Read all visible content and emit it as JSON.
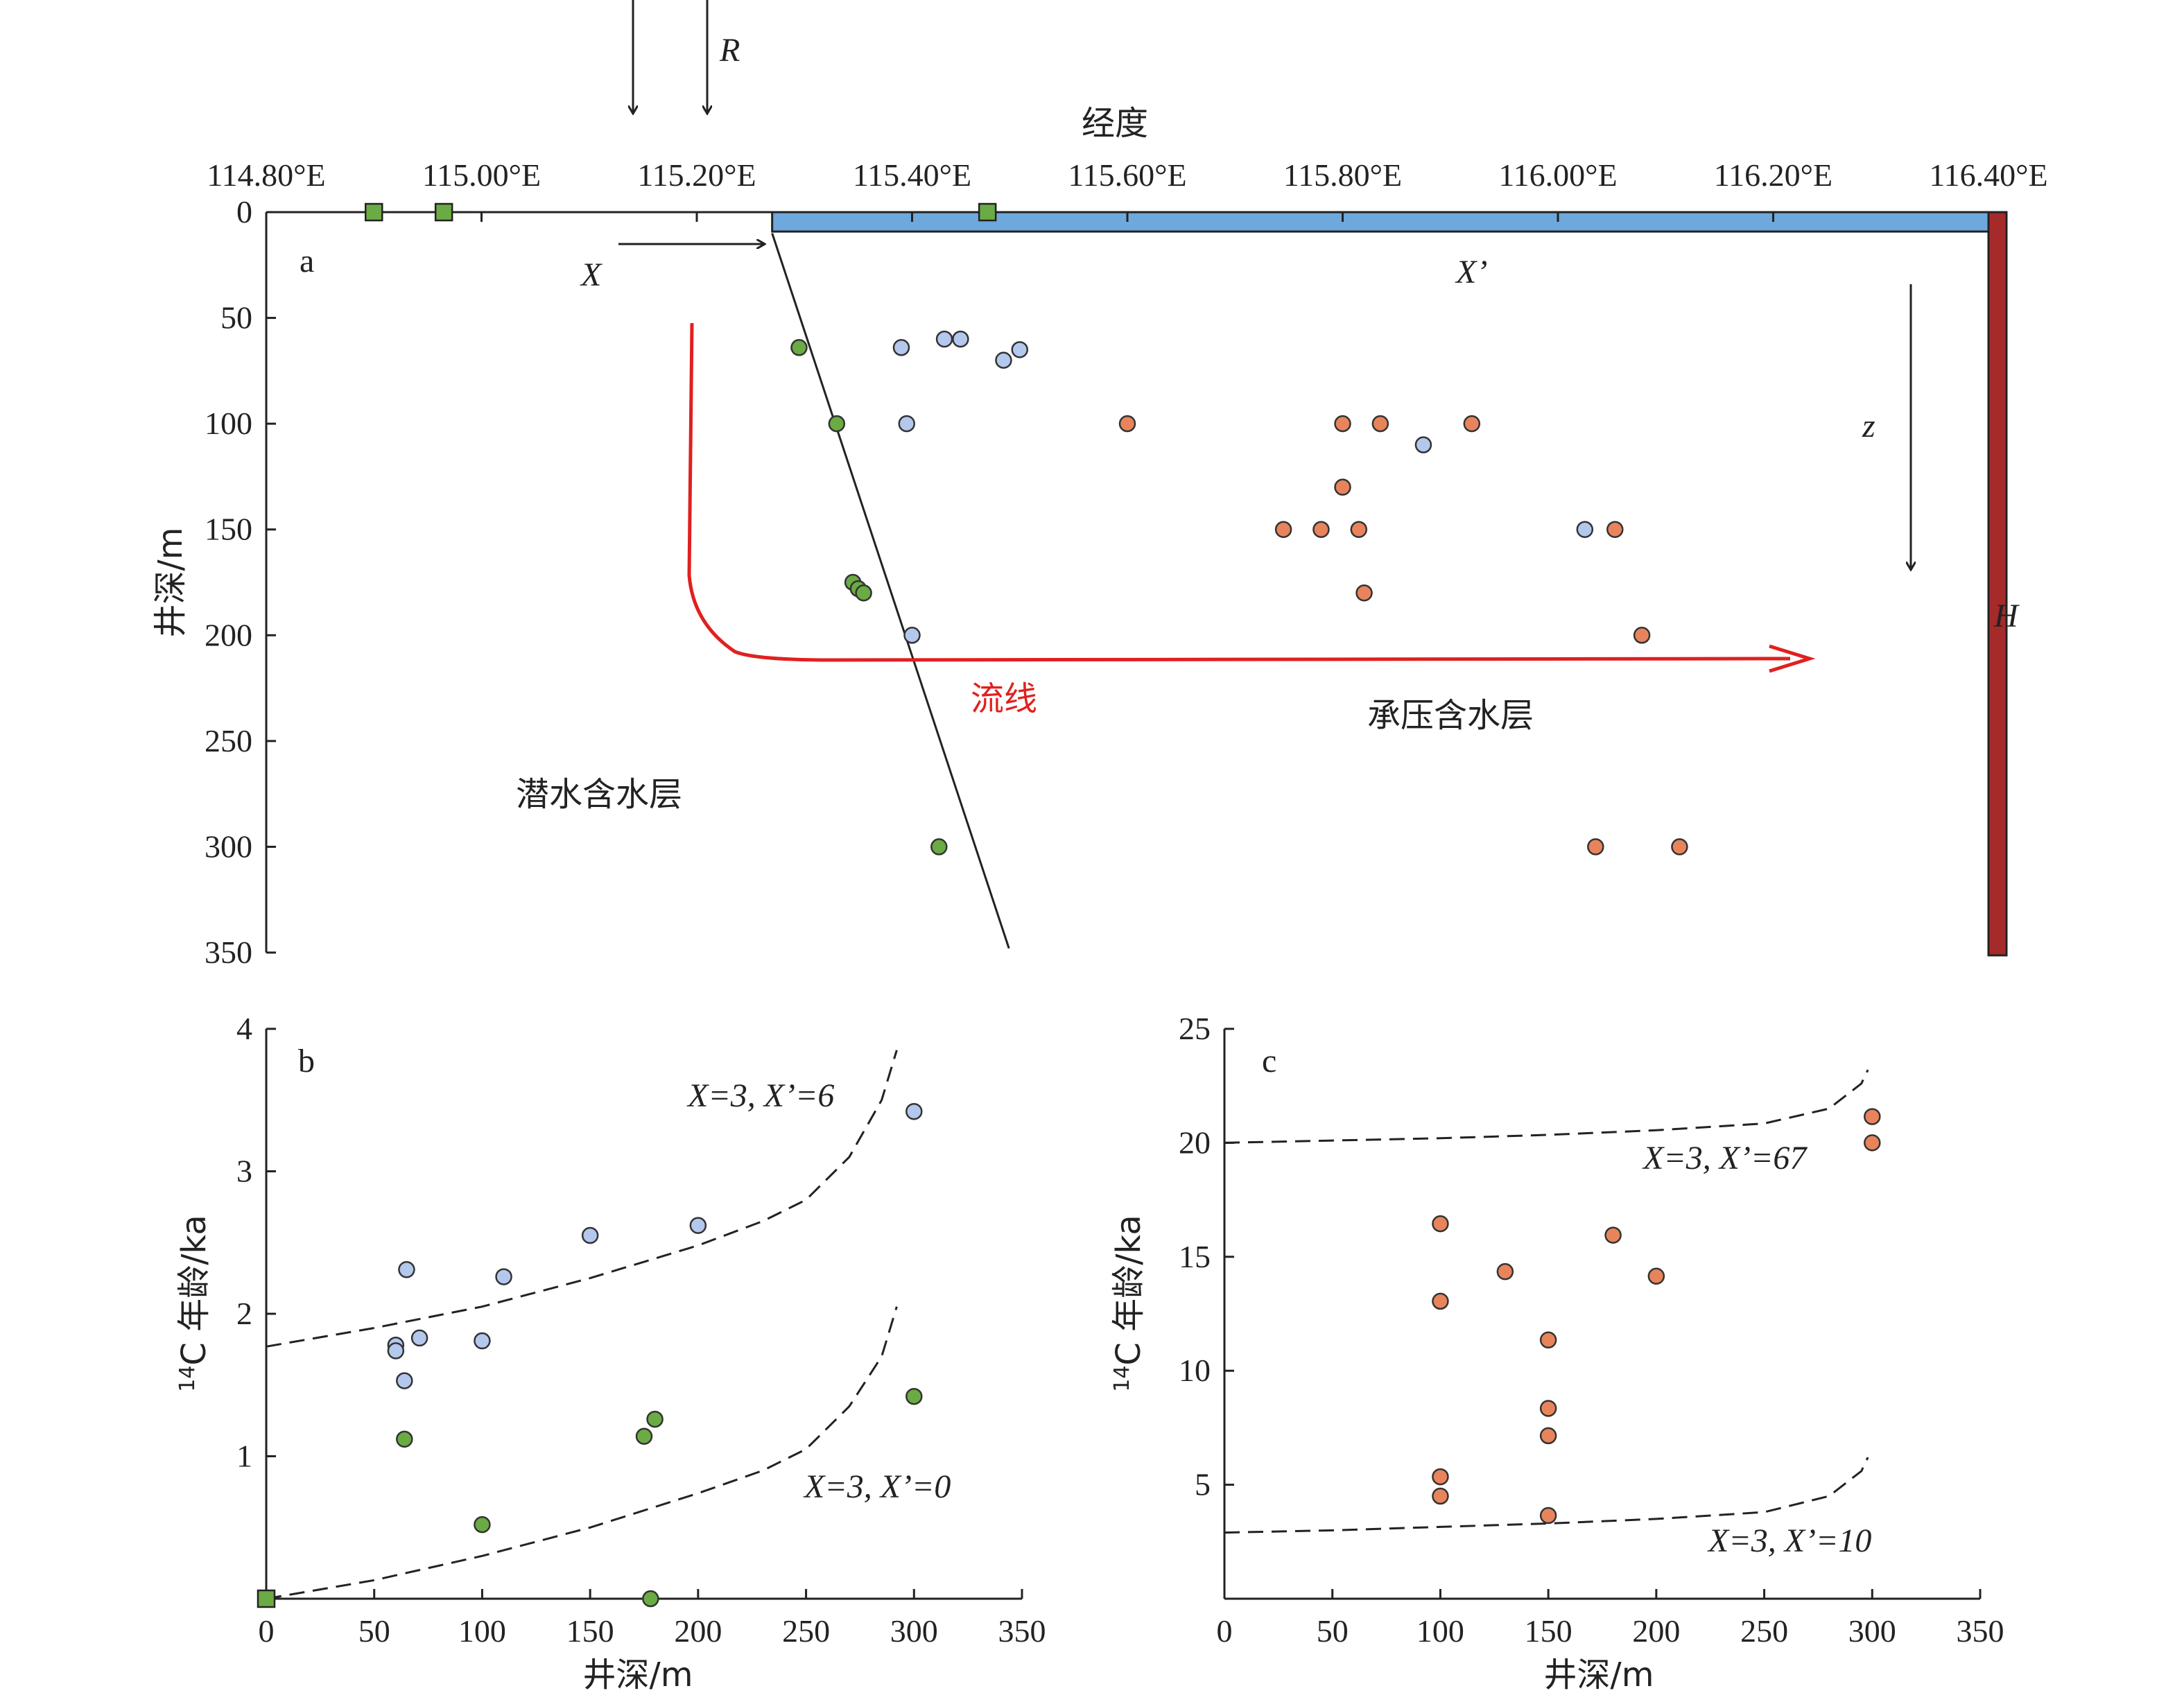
{
  "chart_data": [
    {
      "panel": "a",
      "type": "scatter",
      "panel_label": "a",
      "xlabel": "经度",
      "ylabel": "井深/m",
      "x_ticks": [
        "114.80°E",
        "115.00°E",
        "115.20°E",
        "115.40°E",
        "115.60°E",
        "115.80°E",
        "116.00°E",
        "116.20°E",
        "116.40°E"
      ],
      "xlim": [
        114.8,
        116.4
      ],
      "y_ticks": [
        "0",
        "50",
        "100",
        "150",
        "200",
        "250",
        "300",
        "350"
      ],
      "ylim": [
        0,
        350
      ],
      "y_inverted": true,
      "annotations": {
        "r": "R",
        "x": "X",
        "xprime": "X’",
        "z": "z",
        "h": "H",
        "streamline": "流线",
        "confined": "承压含水层",
        "unconfined": "潜水含水层"
      },
      "colors": {
        "blue_points": "#b4c8ee",
        "green_points": "#6aab44",
        "orange_points": "#e8845c",
        "confined_bar": "#6ea8dc",
        "h_bar": "#a52a2a",
        "streamline": "#e02020",
        "marker_square": "#6aab44"
      },
      "squares": [
        {
          "x": 114.9,
          "y": 0
        },
        {
          "x": 114.965,
          "y": 0
        },
        {
          "x": 115.47,
          "y": 0
        }
      ],
      "boundary_line": [
        {
          "x": 115.27,
          "y": 10
        },
        {
          "x": 115.49,
          "y": 348
        }
      ],
      "series": [
        {
          "color_key": "green_points",
          "points": [
            {
              "x": 115.295,
              "y": 64
            },
            {
              "x": 115.33,
              "y": 100
            },
            {
              "x": 115.345,
              "y": 175
            },
            {
              "x": 115.35,
              "y": 178
            },
            {
              "x": 115.355,
              "y": 180
            },
            {
              "x": 115.425,
              "y": 300
            }
          ]
        },
        {
          "color_key": "blue_points",
          "points": [
            {
              "x": 115.39,
              "y": 64
            },
            {
              "x": 115.43,
              "y": 60
            },
            {
              "x": 115.445,
              "y": 60
            },
            {
              "x": 115.485,
              "y": 70
            },
            {
              "x": 115.5,
              "y": 65
            },
            {
              "x": 115.395,
              "y": 100
            },
            {
              "x": 115.875,
              "y": 110
            },
            {
              "x": 116.025,
              "y": 150
            },
            {
              "x": 115.4,
              "y": 200
            }
          ]
        },
        {
          "color_key": "orange_points",
          "points": [
            {
              "x": 115.6,
              "y": 100
            },
            {
              "x": 115.8,
              "y": 100
            },
            {
              "x": 115.835,
              "y": 100
            },
            {
              "x": 115.92,
              "y": 100
            },
            {
              "x": 115.8,
              "y": 130
            },
            {
              "x": 115.745,
              "y": 150
            },
            {
              "x": 115.78,
              "y": 150
            },
            {
              "x": 115.815,
              "y": 150
            },
            {
              "x": 116.053,
              "y": 150
            },
            {
              "x": 115.82,
              "y": 180
            },
            {
              "x": 116.078,
              "y": 200
            },
            {
              "x": 116.035,
              "y": 300
            },
            {
              "x": 116.113,
              "y": 300
            }
          ]
        }
      ]
    },
    {
      "panel": "b",
      "type": "scatter",
      "panel_label": "b",
      "xlabel": "井深/m",
      "ylabel_sup": "14",
      "ylabel_main": "C 年龄/ka",
      "x_ticks": [
        "0",
        "50",
        "100",
        "150",
        "200",
        "250",
        "300",
        "350"
      ],
      "xlim": [
        0,
        350
      ],
      "y_ticks": [
        "1",
        "2",
        "3",
        "4"
      ],
      "ylim": [
        0,
        4
      ],
      "curves": [
        {
          "label": "X=3, X’=6",
          "points": [
            [
              0,
              1.77
            ],
            [
              50,
              1.9
            ],
            [
              100,
              2.05
            ],
            [
              150,
              2.25
            ],
            [
              200,
              2.48
            ],
            [
              230,
              2.65
            ],
            [
              250,
              2.8
            ],
            [
              270,
              3.1
            ],
            [
              285,
              3.5
            ],
            [
              292,
              3.85
            ]
          ]
        },
        {
          "label": "X=3, X’=0",
          "points": [
            [
              0,
              0
            ],
            [
              50,
              0.13
            ],
            [
              100,
              0.3
            ],
            [
              150,
              0.5
            ],
            [
              200,
              0.74
            ],
            [
              230,
              0.9
            ],
            [
              250,
              1.05
            ],
            [
              270,
              1.35
            ],
            [
              285,
              1.7
            ],
            [
              292,
              2.05
            ]
          ]
        }
      ],
      "series": [
        {
          "color_key": "blue",
          "points": [
            [
              60,
              1.78
            ],
            [
              60,
              1.74
            ],
            [
              65,
              2.31
            ],
            [
              64,
              1.53
            ],
            [
              71,
              1.83
            ],
            [
              100,
              1.81
            ],
            [
              110,
              2.26
            ],
            [
              150,
              2.55
            ],
            [
              200,
              2.62
            ],
            [
              300,
              3.42
            ]
          ]
        },
        {
          "color_key": "green",
          "points": [
            [
              64,
              1.12
            ],
            [
              100,
              0.52
            ],
            [
              175,
              1.14
            ],
            [
              180,
              1.26
            ],
            [
              300,
              1.42
            ],
            [
              178,
              0
            ]
          ]
        }
      ],
      "square": [
        0,
        0
      ]
    },
    {
      "panel": "c",
      "type": "scatter",
      "panel_label": "c",
      "xlabel": "井深/m",
      "ylabel_sup": "14",
      "ylabel_main": "C 年龄/ka",
      "x_ticks": [
        "0",
        "50",
        "100",
        "150",
        "200",
        "250",
        "300",
        "350"
      ],
      "xlim": [
        0,
        350
      ],
      "y_ticks": [
        "5",
        "10",
        "15",
        "20",
        "25"
      ],
      "ylim": [
        0,
        25
      ],
      "curves": [
        {
          "label": "X=3, X’=67",
          "points": [
            [
              0,
              20.0
            ],
            [
              50,
              20.1
            ],
            [
              100,
              20.2
            ],
            [
              150,
              20.35
            ],
            [
              200,
              20.55
            ],
            [
              250,
              20.85
            ],
            [
              280,
              21.5
            ],
            [
              295,
              22.6
            ],
            [
              298,
              23.2
            ]
          ]
        },
        {
          "label": "X=3, X’=10",
          "points": [
            [
              0,
              2.9
            ],
            [
              50,
              3.0
            ],
            [
              100,
              3.15
            ],
            [
              150,
              3.3
            ],
            [
              200,
              3.5
            ],
            [
              250,
              3.8
            ],
            [
              280,
              4.5
            ],
            [
              295,
              5.6
            ],
            [
              298,
              6.2
            ]
          ]
        }
      ],
      "series": [
        {
          "color_key": "orange",
          "points": [
            [
              100,
              16.45
            ],
            [
              100,
              13.05
            ],
            [
              100,
              5.35
            ],
            [
              100,
              4.5
            ],
            [
              130,
              14.35
            ],
            [
              150,
              11.35
            ],
            [
              150,
              8.35
            ],
            [
              150,
              7.15
            ],
            [
              150,
              3.65
            ],
            [
              180,
              15.95
            ],
            [
              200,
              14.15
            ],
            [
              300,
              21.15
            ],
            [
              300,
              20.0
            ]
          ]
        }
      ]
    }
  ]
}
